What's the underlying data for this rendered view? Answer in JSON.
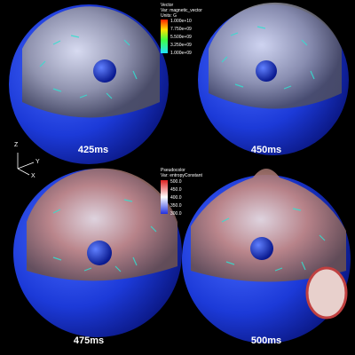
{
  "panels": [
    {
      "label": "425ms"
    },
    {
      "label": "450ms"
    },
    {
      "label": "475ms"
    },
    {
      "label": "500ms"
    }
  ],
  "vector_legend": {
    "title": "Vector",
    "variable": "Var: magnetic_vector",
    "units": "Units: G",
    "ticks": [
      "1.000e+10",
      "7.750e+09",
      "5.500e+09",
      "3.250e+09",
      "1.000e+09"
    ]
  },
  "pseudocolor_legend": {
    "title": "Pseudocolor",
    "variable": "Var: entropyConstant",
    "ticks": [
      "500.0",
      "450.0",
      "400.0",
      "350.0",
      "300.0"
    ]
  },
  "axes": {
    "z": "Z",
    "y": "Y",
    "x": "X"
  }
}
